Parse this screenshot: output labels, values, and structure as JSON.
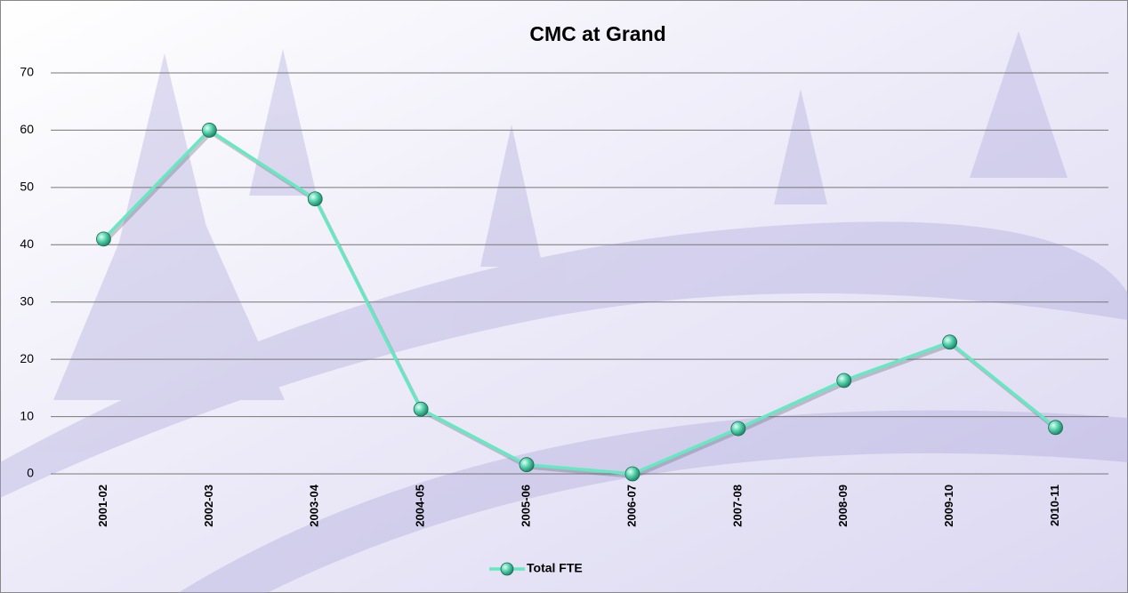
{
  "chart_data": {
    "type": "line",
    "title": "CMC at Grand",
    "categories": [
      "2001-02",
      "2002-03",
      "2003-04",
      "2004-05",
      "2005-06",
      "2006-07",
      "2007-08",
      "2008-09",
      "2009-10",
      "2010-11"
    ],
    "series": [
      {
        "name": "Total FTE",
        "color": "#66e8c0",
        "values": [
          41,
          60,
          48,
          11.3,
          1.6,
          0,
          7.9,
          16.3,
          23,
          8.1
        ]
      }
    ],
    "ylim": [
      0,
      70
    ],
    "yticks": [
      0,
      10,
      20,
      30,
      40,
      50,
      60,
      70
    ],
    "grid": true,
    "legend": "bottom"
  }
}
